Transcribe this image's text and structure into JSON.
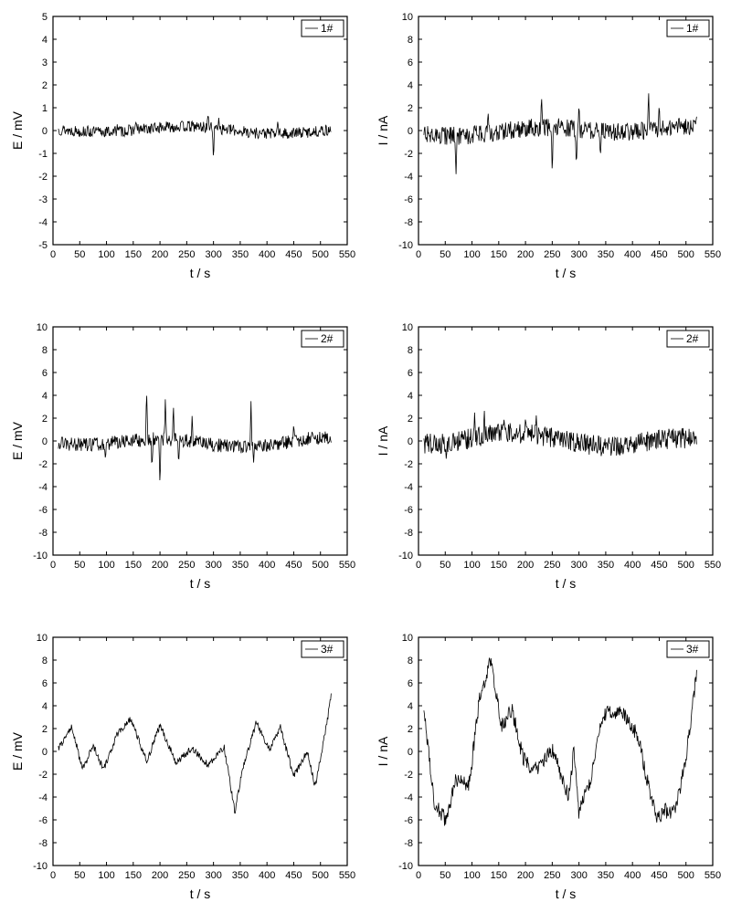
{
  "global": {
    "background_color": "#ffffff",
    "axis_color": "#000000",
    "grid_color": "#000000",
    "tick_color": "#000000",
    "line_color": "#000000",
    "text_color": "#000000",
    "font_family": "Arial, sans-serif",
    "axis_label_fontsize": 14,
    "tick_fontsize": 11,
    "legend_fontsize": 12,
    "axis_line_width": 1.2,
    "tick_length": 4,
    "line_width": 0.8
  },
  "charts": [
    {
      "id": "E1",
      "legend": "1#",
      "xlabel": "t / s",
      "ylabel": "E / mV",
      "xlim": [
        0,
        550
      ],
      "ylim": [
        -5,
        5
      ],
      "xticks": [
        0,
        50,
        100,
        150,
        200,
        250,
        300,
        350,
        400,
        450,
        500,
        550
      ],
      "yticks": [
        -5,
        -4,
        -3,
        -2,
        -1,
        0,
        1,
        2,
        3,
        4,
        5
      ],
      "xlim_draw": [
        10,
        520
      ],
      "noise_amp": 0.25,
      "spikes": [
        {
          "t": 290,
          "v": 0.8
        },
        {
          "t": 300,
          "v": -1.3
        },
        {
          "t": 310,
          "v": 0.6
        },
        {
          "t": 120,
          "v": 0.3
        },
        {
          "t": 155,
          "v": 0.4
        },
        {
          "t": 420,
          "v": 0.4
        }
      ],
      "baseline_wave": 0.12
    },
    {
      "id": "I1",
      "legend": "1#",
      "xlabel": "t / s",
      "ylabel": "I / nA",
      "xlim": [
        0,
        550
      ],
      "ylim": [
        -10,
        10
      ],
      "xticks": [
        0,
        50,
        100,
        150,
        200,
        250,
        300,
        350,
        400,
        450,
        500,
        550
      ],
      "yticks": [
        -10,
        -8,
        -6,
        -4,
        -2,
        0,
        2,
        4,
        6,
        8,
        10
      ],
      "xlim_draw": [
        10,
        520
      ],
      "noise_amp": 0.8,
      "spikes": [
        {
          "t": 70,
          "v": -4.2
        },
        {
          "t": 130,
          "v": 2.0
        },
        {
          "t": 230,
          "v": 3.1
        },
        {
          "t": 250,
          "v": -4.0
        },
        {
          "t": 295,
          "v": -3.2
        },
        {
          "t": 300,
          "v": 2.4
        },
        {
          "t": 340,
          "v": -2.5
        },
        {
          "t": 430,
          "v": 3.8
        },
        {
          "t": 450,
          "v": 2.5
        }
      ],
      "baseline_wave": 0.3
    },
    {
      "id": "E2",
      "legend": "2#",
      "xlabel": "t / s",
      "ylabel": "E / mV",
      "xlim": [
        0,
        550
      ],
      "ylim": [
        -10,
        10
      ],
      "xticks": [
        0,
        50,
        100,
        150,
        200,
        250,
        300,
        350,
        400,
        450,
        500,
        550
      ],
      "yticks": [
        -10,
        -8,
        -6,
        -4,
        -2,
        0,
        2,
        4,
        6,
        8,
        10
      ],
      "xlim_draw": [
        10,
        520
      ],
      "noise_amp": 0.6,
      "spikes": [
        {
          "t": 175,
          "v": 4.5
        },
        {
          "t": 185,
          "v": -2.5
        },
        {
          "t": 200,
          "v": -4.0
        },
        {
          "t": 210,
          "v": 3.8
        },
        {
          "t": 225,
          "v": 3.2
        },
        {
          "t": 235,
          "v": -2.0
        },
        {
          "t": 260,
          "v": 2.3
        },
        {
          "t": 370,
          "v": 3.6
        },
        {
          "t": 375,
          "v": -2.0
        },
        {
          "t": 98,
          "v": -1.6
        },
        {
          "t": 450,
          "v": 1.7
        }
      ],
      "baseline_wave": 0.35
    },
    {
      "id": "I2",
      "legend": "2#",
      "xlabel": "t / s",
      "ylabel": "I / nA",
      "xlim": [
        0,
        550
      ],
      "ylim": [
        -10,
        10
      ],
      "xticks": [
        0,
        50,
        100,
        150,
        200,
        250,
        300,
        350,
        400,
        450,
        500,
        550
      ],
      "yticks": [
        -10,
        -8,
        -6,
        -4,
        -2,
        0,
        2,
        4,
        6,
        8,
        10
      ],
      "xlim_draw": [
        10,
        520
      ],
      "noise_amp": 0.9,
      "spikes": [
        {
          "t": 105,
          "v": 2.6
        },
        {
          "t": 123,
          "v": 2.8
        },
        {
          "t": 220,
          "v": 2.4
        },
        {
          "t": 52,
          "v": -1.7
        },
        {
          "t": 160,
          "v": 1.9
        },
        {
          "t": 200,
          "v": 2.0
        }
      ],
      "baseline_wave": 0.45
    },
    {
      "id": "E3",
      "legend": "3#",
      "xlabel": "t / s",
      "ylabel": "E / mV",
      "xlim": [
        0,
        550
      ],
      "ylim": [
        -10,
        10
      ],
      "xticks": [
        0,
        50,
        100,
        150,
        200,
        250,
        300,
        350,
        400,
        450,
        500,
        550
      ],
      "yticks": [
        -10,
        -8,
        -6,
        -4,
        -2,
        0,
        2,
        4,
        6,
        8,
        10
      ],
      "xlim_draw": [
        10,
        520
      ],
      "noise_amp": 0.3,
      "waveform": [
        {
          "t": 10,
          "v": 0.2
        },
        {
          "t": 35,
          "v": 2.2
        },
        {
          "t": 55,
          "v": -1.6
        },
        {
          "t": 75,
          "v": 0.5
        },
        {
          "t": 95,
          "v": -1.6
        },
        {
          "t": 120,
          "v": 1.5
        },
        {
          "t": 145,
          "v": 2.9
        },
        {
          "t": 175,
          "v": -0.9
        },
        {
          "t": 200,
          "v": 2.3
        },
        {
          "t": 230,
          "v": -1.0
        },
        {
          "t": 260,
          "v": 0.3
        },
        {
          "t": 290,
          "v": -1.2
        },
        {
          "t": 320,
          "v": 0.4
        },
        {
          "t": 340,
          "v": -5.3
        },
        {
          "t": 355,
          "v": -1.4
        },
        {
          "t": 380,
          "v": 2.5
        },
        {
          "t": 405,
          "v": 0.2
        },
        {
          "t": 425,
          "v": 2.1
        },
        {
          "t": 450,
          "v": -2.2
        },
        {
          "t": 475,
          "v": 0.0
        },
        {
          "t": 490,
          "v": -3.1
        },
        {
          "t": 510,
          "v": 2.0
        },
        {
          "t": 520,
          "v": 4.8
        }
      ]
    },
    {
      "id": "I3",
      "legend": "3#",
      "xlabel": "t / s",
      "ylabel": "I / nA",
      "xlim": [
        0,
        550
      ],
      "ylim": [
        -10,
        10
      ],
      "xticks": [
        0,
        50,
        100,
        150,
        200,
        250,
        300,
        350,
        400,
        450,
        500,
        550
      ],
      "yticks": [
        -10,
        -8,
        -6,
        -4,
        -2,
        0,
        2,
        4,
        6,
        8,
        10
      ],
      "xlim_draw": [
        10,
        520
      ],
      "noise_amp": 0.7,
      "waveform": [
        {
          "t": 10,
          "v": 3.7
        },
        {
          "t": 30,
          "v": -4.5
        },
        {
          "t": 50,
          "v": -6.0
        },
        {
          "t": 70,
          "v": -2.5
        },
        {
          "t": 95,
          "v": -2.8
        },
        {
          "t": 115,
          "v": 5.0
        },
        {
          "t": 135,
          "v": 7.9
        },
        {
          "t": 155,
          "v": 2.2
        },
        {
          "t": 175,
          "v": 3.6
        },
        {
          "t": 195,
          "v": -0.5
        },
        {
          "t": 215,
          "v": -1.8
        },
        {
          "t": 250,
          "v": 0.2
        },
        {
          "t": 280,
          "v": -3.9
        },
        {
          "t": 290,
          "v": 0.0
        },
        {
          "t": 300,
          "v": -5.4
        },
        {
          "t": 320,
          "v": -2.8
        },
        {
          "t": 345,
          "v": 3.2
        },
        {
          "t": 380,
          "v": 3.6
        },
        {
          "t": 410,
          "v": 1.4
        },
        {
          "t": 430,
          "v": -3.1
        },
        {
          "t": 445,
          "v": -5.8
        },
        {
          "t": 460,
          "v": -5.2
        },
        {
          "t": 480,
          "v": -5.4
        },
        {
          "t": 500,
          "v": -0.7
        },
        {
          "t": 520,
          "v": 7.0
        }
      ]
    }
  ]
}
